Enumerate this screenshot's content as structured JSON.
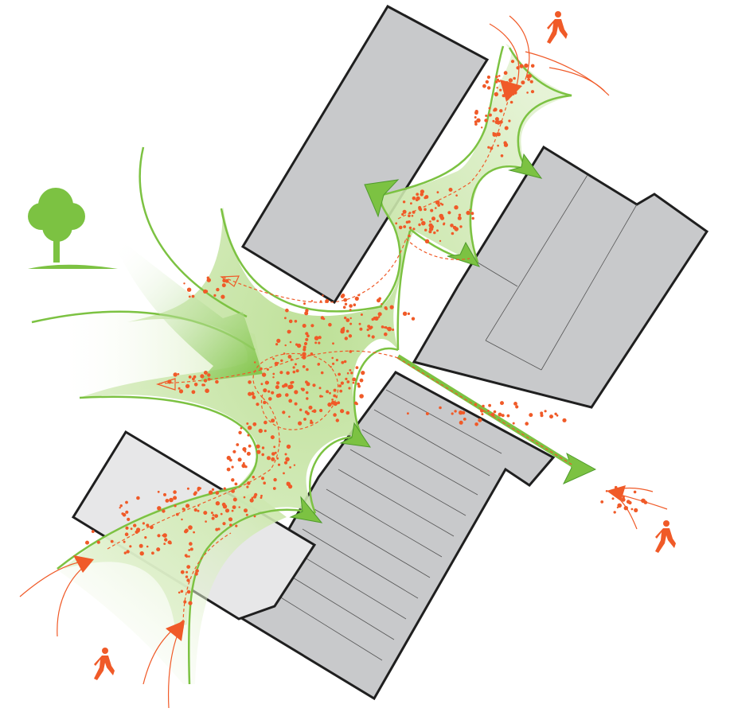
{
  "diagram": {
    "type": "site-flow-diagram",
    "elements": {
      "buildings": [
        "building-north",
        "building-east",
        "building-southwest",
        "building-southeast"
      ],
      "icons": [
        "tree-icon",
        "pedestrian-icon",
        "pedestrian-icon",
        "pedestrian-icon"
      ]
    }
  },
  "colors": {
    "building_dark": "#c8c9cb",
    "building_light": "#e7e7e8",
    "building_stroke": "#1f1f1f",
    "flow_green": "#7cc242",
    "flow_green_light": "#c9e6a7",
    "flow_green_dark": "#4f9b2c",
    "people_orange": "#f05a28",
    "tree_green": "#7cc242"
  }
}
